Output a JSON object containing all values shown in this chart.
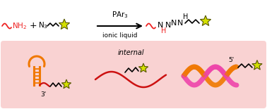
{
  "bg_color": "#ffffff",
  "panel_color": "#f9d0d0",
  "top_reaction": {
    "amine_color": "#ee2222",
    "chain_color": "#ee2222",
    "black_color": "#111111",
    "arrow_color": "#111111",
    "star_color": "#d4e000",
    "star_edge": "#555500",
    "PAr3_text": "PAr$_3$",
    "ionic_text": "ionic liquid"
  },
  "bottom": {
    "label_3prime": "3'",
    "label_internal": "internal",
    "label_5prime": "5'",
    "hairpin_color": "#f07800",
    "ssDNA_color": "#cc1111",
    "dsDNA_color1": "#f07800",
    "dsDNA_color2": "#ee44aa",
    "star_color": "#d4e000",
    "star_edge": "#555500"
  }
}
